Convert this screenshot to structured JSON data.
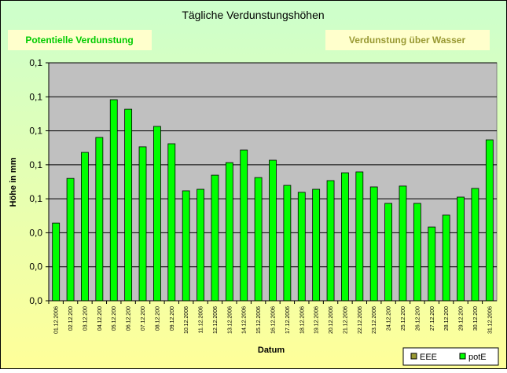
{
  "chart_data": {
    "type": "bar",
    "title": "Tägliche Verdunstungshöhen",
    "annotations": [
      "Potentielle Verdunstung",
      "Verdunstung über Wasser"
    ],
    "x_label": "Datum",
    "y_label": "Höhe in mm",
    "categories": [
      "01.12.2006",
      "02.12.200",
      "03.12.200",
      "04.12.200",
      "05.12.200",
      "06.12.200",
      "07.12.200",
      "08.12.200",
      "09.12.200",
      "10.12.2006",
      "11.12.2006",
      "12.12.2006",
      "13.12.2006",
      "14.12.2006",
      "15.12.2006",
      "16.12.2006",
      "17.12.2006",
      "18.12.2006",
      "19.12.2006",
      "20.12.2006",
      "21.12.2006",
      "22.12.2006",
      "23.12.2006",
      "24.12.200",
      "25.12.200",
      "26.12.200",
      "27.12.200",
      "28.12.200",
      "29.12.200",
      "30.12.200",
      "31.12.2006"
    ],
    "series": [
      {
        "name": "EEE",
        "color": "#999933",
        "values": [
          null,
          null,
          null,
          null,
          null,
          null,
          null,
          null,
          null,
          null,
          null,
          null,
          null,
          null,
          null,
          null,
          null,
          null,
          null,
          null,
          null,
          null,
          null,
          null,
          null,
          null,
          null,
          null,
          null,
          null,
          null
        ]
      },
      {
        "name": "potE",
        "color": "#00ff00",
        "values": [
          0.0457,
          0.072,
          0.0873,
          0.0961,
          0.1183,
          0.1127,
          0.0906,
          0.1026,
          0.0924,
          0.0647,
          0.0656,
          0.0739,
          0.0813,
          0.0887,
          0.0725,
          0.0827,
          0.0679,
          0.0638,
          0.0656,
          0.0707,
          0.0753,
          0.0758,
          0.067,
          0.0573,
          0.0675,
          0.0573,
          0.0434,
          0.0504,
          0.061,
          0.0661,
          0.0947
        ]
      }
    ],
    "ylim": [
      0,
      0.14
    ],
    "yticks": [
      {
        "value": 0,
        "label": "0,0"
      },
      {
        "value": 0.02,
        "label": "0,0"
      },
      {
        "value": 0.04,
        "label": "0,0"
      },
      {
        "value": 0.06,
        "label": "0,1"
      },
      {
        "value": 0.08,
        "label": "0,1"
      },
      {
        "value": 0.1,
        "label": "0,1"
      },
      {
        "value": 0.12,
        "label": "0,1"
      },
      {
        "value": 0.14,
        "label": "0,1"
      }
    ],
    "grid": true,
    "legend": "lower right"
  }
}
